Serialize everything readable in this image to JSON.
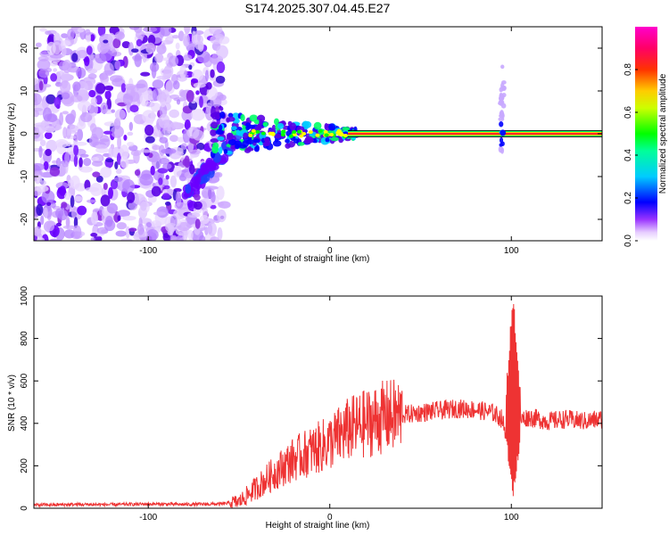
{
  "figure": {
    "title": "S174.2025.307.04.45.E27"
  },
  "chart_data": [
    {
      "type": "heatmap",
      "title": "S174.2025.307.04.45.E27",
      "xlabel": "Height of straight line (km)",
      "ylabel": "Frequency (Hz)",
      "xlim": [
        -163,
        150
      ],
      "ylim": [
        -25,
        25
      ],
      "xticks": [
        -100,
        0,
        100
      ],
      "yticks": [
        -20,
        -10,
        0,
        10,
        20
      ],
      "grid": false,
      "colorbar": {
        "label": "Normalized spectral amplitude",
        "range": [
          0,
          1
        ],
        "ticks": [
          "0.0",
          "0.2",
          "0.4",
          "0.6",
          "0.8"
        ],
        "colormap": [
          "#ffffff",
          "#cc99ff",
          "#7f00ff",
          "#0000ff",
          "#00ffff",
          "#00ff00",
          "#ffff00",
          "#ff0000",
          "#ff00ff"
        ]
      },
      "features": {
        "noise_region_x": [
          -163,
          -58
        ],
        "main_band_frequency_hz": 0,
        "main_band_x": [
          -65,
          150
        ],
        "high_amplitude_band_x": [
          10,
          150
        ],
        "spike_x": 95,
        "spike_frequency_range_hz": [
          -4,
          17
        ]
      }
    },
    {
      "type": "line",
      "xlabel": "Height of straight line (km)",
      "ylabel": "SNR (10 * v/v)",
      "xlim": [
        -163,
        150
      ],
      "ylim": [
        0,
        1000
      ],
      "xticks": [
        -100,
        0,
        100
      ],
      "yticks": [
        0,
        200,
        400,
        600,
        800,
        1000
      ],
      "grid": false,
      "color": "#ee3333",
      "series": [
        {
          "x": [
            -163,
            -140,
            -120,
            -100,
            -80,
            -60,
            -50,
            -40,
            -30,
            -20,
            -10,
            0,
            10,
            20,
            30,
            40,
            50,
            60,
            70,
            80,
            90,
            95,
            98,
            100,
            102,
            105,
            110,
            120,
            130,
            140,
            150
          ],
          "values": [
            15,
            18,
            17,
            20,
            18,
            20,
            30,
            100,
            170,
            230,
            270,
            310,
            370,
            400,
            430,
            440,
            450,
            460,
            470,
            465,
            450,
            420,
            300,
            150,
            700,
            420,
            430,
            410,
            420,
            410,
            420
          ]
        }
      ],
      "features": {
        "max_spike": {
          "x": 101,
          "value": 1000
        },
        "min_dip": {
          "x": 101,
          "value": 55
        }
      }
    }
  ]
}
